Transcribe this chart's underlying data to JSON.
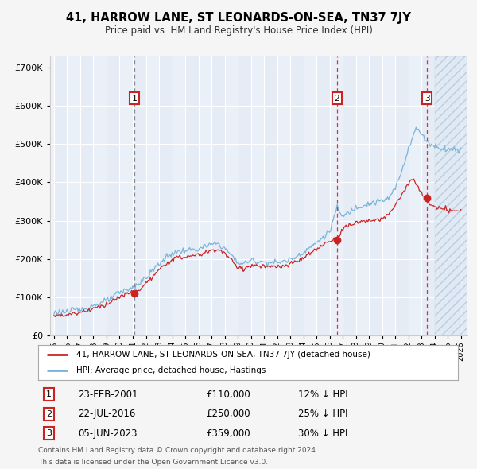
{
  "title": "41, HARROW LANE, ST LEONARDS-ON-SEA, TN37 7JY",
  "subtitle": "Price paid vs. HM Land Registry's House Price Index (HPI)",
  "ytick_values": [
    0,
    100000,
    200000,
    300000,
    400000,
    500000,
    600000,
    700000
  ],
  "ylim": [
    0,
    730000
  ],
  "xlim_start": 1994.7,
  "xlim_end": 2026.5,
  "hpi_line_color": "#7ab4d8",
  "price_line_color": "#cc2222",
  "sale_events": [
    {
      "label": "1",
      "date": "23-FEB-2001",
      "price": "£110,000",
      "hpi_diff": "12% ↓ HPI",
      "x_year": 2001.14,
      "price_val": 110000,
      "vline_color": "#888888",
      "vline_style": "--"
    },
    {
      "label": "2",
      "date": "22-JUL-2016",
      "price": "£250,000",
      "hpi_diff": "25% ↓ HPI",
      "x_year": 2016.55,
      "price_val": 250000,
      "vline_color": "#dd3333",
      "vline_style": "--"
    },
    {
      "label": "3",
      "date": "05-JUN-2023",
      "price": "£359,000",
      "hpi_diff": "30% ↓ HPI",
      "x_year": 2023.42,
      "price_val": 359000,
      "vline_color": "#dd3333",
      "vline_style": "--"
    }
  ],
  "legend_entries": [
    "41, HARROW LANE, ST LEONARDS-ON-SEA, TN37 7JY (detached house)",
    "HPI: Average price, detached house, Hastings"
  ],
  "footer_lines": [
    "Contains HM Land Registry data © Crown copyright and database right 2024.",
    "This data is licensed under the Open Government Licence v3.0."
  ],
  "future_start": 2024.0,
  "background_color": "#f5f5f5",
  "plot_bg_color": "#eef2f8",
  "grid_color": "#ffffff"
}
